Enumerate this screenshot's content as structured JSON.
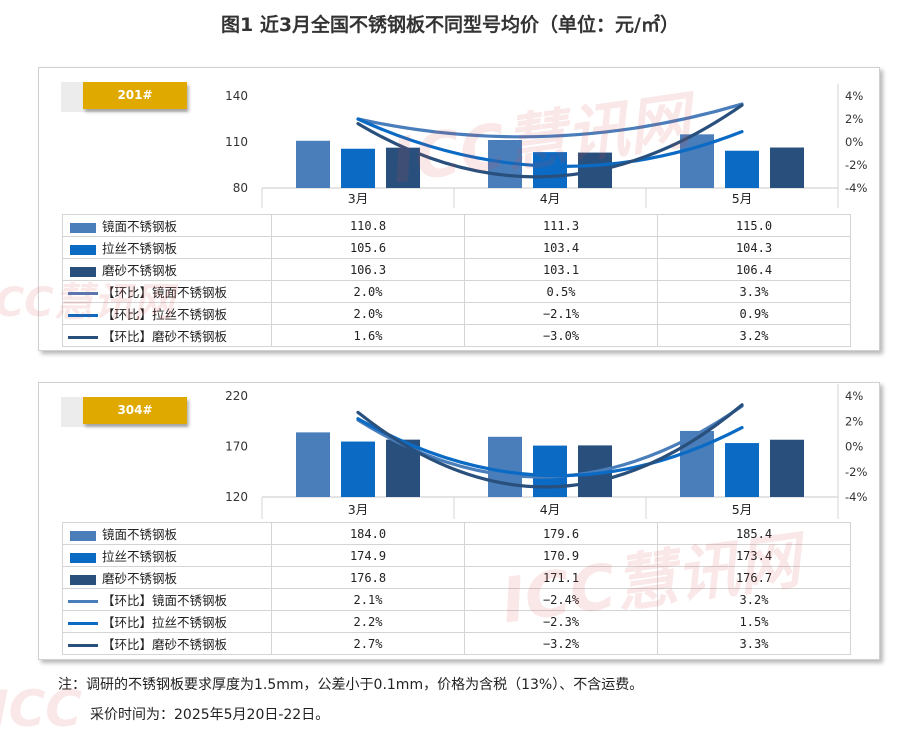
{
  "title": "图1 近3月全国不锈钢板不同型号均价（单位：元/㎡）",
  "notes": [
    "注：调研的不锈钢板要求厚度为1.5mm，公差小于0.1mm，价格为含税（13%）、不含运费。",
    "采价时间为：2025年5月20日-22日。"
  ],
  "watermark": "ICC慧讯网",
  "colors": {
    "mirror": "#4a7ebb",
    "brushed": "#0b6bc4",
    "frosted": "#29507d",
    "accent": "#e0a900"
  },
  "chart_data": [
    {
      "type": "bar",
      "tag": "201#",
      "categories": [
        "3月",
        "4月",
        "5月"
      ],
      "ylim": [
        80,
        140
      ],
      "yticks": [
        80,
        110,
        140
      ],
      "y2lim": [
        -4,
        4
      ],
      "y2ticks": [
        "4%",
        "2%",
        "0%",
        "-2%",
        "-4%"
      ],
      "series": [
        {
          "name": "镜面不锈钢板",
          "kind": "bar",
          "color": "#4a7ebb",
          "values": [
            110.8,
            111.3,
            115.0
          ],
          "labels": [
            "110.8",
            "111.3",
            "115.0"
          ]
        },
        {
          "name": "拉丝不锈钢板",
          "kind": "bar",
          "color": "#0b6bc4",
          "values": [
            105.6,
            103.4,
            104.3
          ],
          "labels": [
            "105.6",
            "103.4",
            "104.3"
          ]
        },
        {
          "name": "磨砂不锈钢板",
          "kind": "bar",
          "color": "#29507d",
          "values": [
            106.3,
            103.1,
            106.4
          ],
          "labels": [
            "106.3",
            "103.1",
            "106.4"
          ]
        },
        {
          "name": "【环比】镜面不锈钢板",
          "kind": "line",
          "color": "#4a7ebb",
          "values": [
            2.0,
            0.5,
            3.3
          ],
          "labels": [
            "2.0%",
            "0.5%",
            "3.3%"
          ]
        },
        {
          "name": "【环比】拉丝不锈钢板",
          "kind": "line",
          "color": "#0b6bc4",
          "values": [
            2.0,
            -2.1,
            0.9
          ],
          "labels": [
            "2.0%",
            "-2.1%",
            "0.9%"
          ]
        },
        {
          "name": "【环比】磨砂不锈钢板",
          "kind": "line",
          "color": "#29507d",
          "values": [
            1.6,
            -3.0,
            3.2
          ],
          "labels": [
            "1.6%",
            "-3.0%",
            "3.2%"
          ]
        }
      ]
    },
    {
      "type": "bar",
      "tag": "304#",
      "categories": [
        "3月",
        "4月",
        "5月"
      ],
      "ylim": [
        120,
        220
      ],
      "yticks": [
        120,
        170,
        220
      ],
      "y2lim": [
        -4,
        4
      ],
      "y2ticks": [
        "4%",
        "2%",
        "0%",
        "-2%",
        "-4%"
      ],
      "series": [
        {
          "name": "镜面不锈钢板",
          "kind": "bar",
          "color": "#4a7ebb",
          "values": [
            184.0,
            179.6,
            185.4
          ],
          "labels": [
            "184.0",
            "179.6",
            "185.4"
          ]
        },
        {
          "name": "拉丝不锈钢板",
          "kind": "bar",
          "color": "#0b6bc4",
          "values": [
            174.9,
            170.9,
            173.4
          ],
          "labels": [
            "174.9",
            "170.9",
            "173.4"
          ]
        },
        {
          "name": "磨砂不锈钢板",
          "kind": "bar",
          "color": "#29507d",
          "values": [
            176.8,
            171.1,
            176.7
          ],
          "labels": [
            "176.8",
            "171.1",
            "176.7"
          ]
        },
        {
          "name": "【环比】镜面不锈钢板",
          "kind": "line",
          "color": "#4a7ebb",
          "values": [
            2.1,
            -2.4,
            3.2
          ],
          "labels": [
            "2.1%",
            "-2.4%",
            "3.2%"
          ]
        },
        {
          "name": "【环比】拉丝不锈钢板",
          "kind": "line",
          "color": "#0b6bc4",
          "values": [
            2.2,
            -2.3,
            1.5
          ],
          "labels": [
            "2.2%",
            "-2.3%",
            "1.5%"
          ]
        },
        {
          "name": "【环比】磨砂不锈钢板",
          "kind": "line",
          "color": "#29507d",
          "values": [
            2.7,
            -3.2,
            3.3
          ],
          "labels": [
            "2.7%",
            "-3.2%",
            "3.3%"
          ]
        }
      ]
    }
  ]
}
